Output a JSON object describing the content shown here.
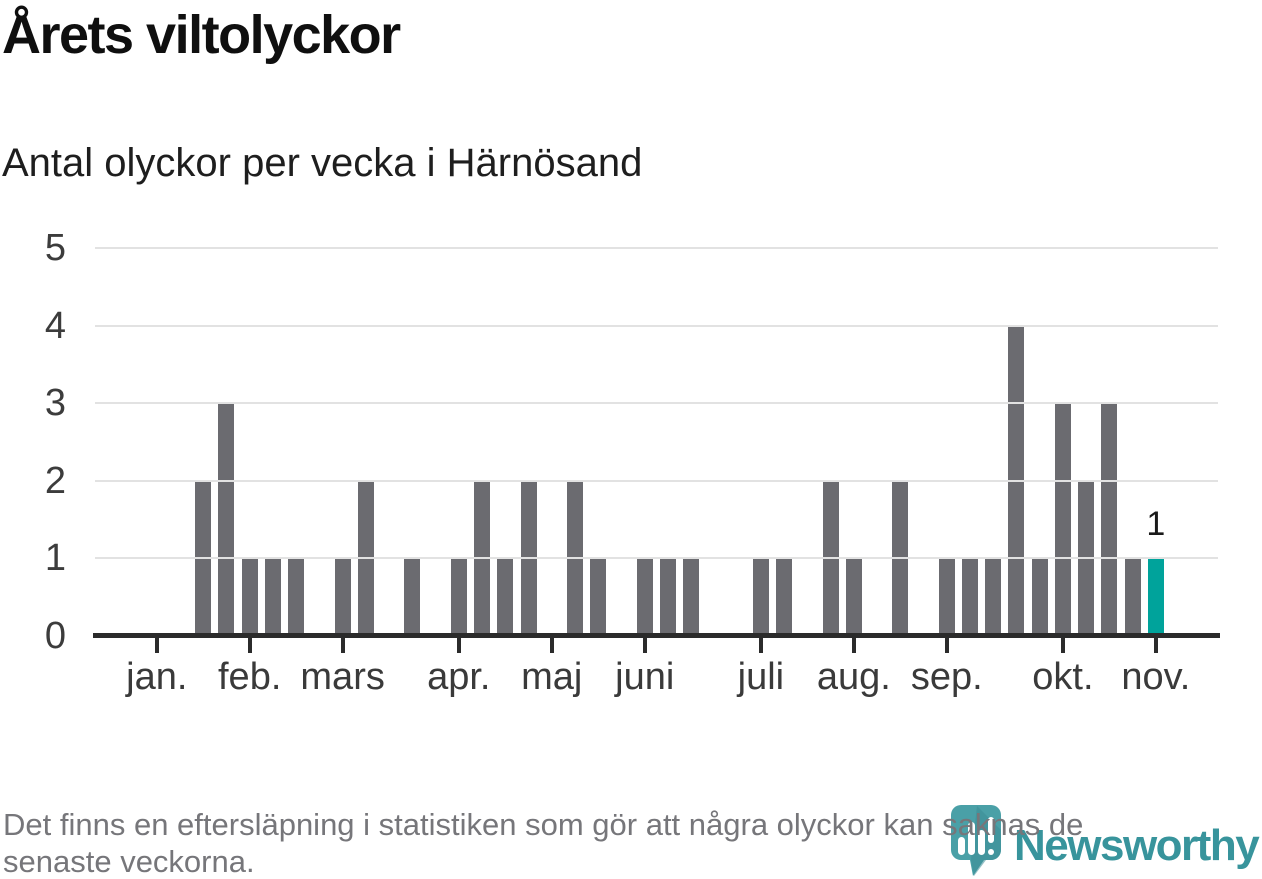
{
  "header": {
    "title": "Årets viltolyckor",
    "subtitle": "Antal olyckor per vecka i Härnösand"
  },
  "chart_data": {
    "type": "bar",
    "title": "Årets viltolyckor",
    "subtitle": "Antal olyckor per vecka i Härnösand",
    "x_unit": "vecka",
    "y_unit": "antal olyckor",
    "values": [
      0,
      0,
      0,
      0,
      2,
      3,
      1,
      1,
      1,
      0,
      1,
      2,
      0,
      1,
      0,
      1,
      2,
      1,
      2,
      0,
      2,
      1,
      0,
      1,
      1,
      1,
      0,
      0,
      1,
      1,
      0,
      2,
      1,
      0,
      2,
      0,
      1,
      1,
      1,
      4,
      1,
      3,
      2,
      3,
      1,
      1
    ],
    "highlight_index": 45,
    "highlight_value_label": "1",
    "y_ticks": [
      0,
      1,
      2,
      3,
      4,
      5
    ],
    "ylim": [
      0,
      5
    ],
    "grid": "on",
    "legend": "none",
    "month_ticks": [
      {
        "label": "jan.",
        "week_index": 2
      },
      {
        "label": "feb.",
        "week_index": 6
      },
      {
        "label": "mars",
        "week_index": 10
      },
      {
        "label": "apr.",
        "week_index": 15
      },
      {
        "label": "maj",
        "week_index": 19
      },
      {
        "label": "juni",
        "week_index": 23
      },
      {
        "label": "juli",
        "week_index": 28
      },
      {
        "label": "aug.",
        "week_index": 32
      },
      {
        "label": "sep.",
        "week_index": 36
      },
      {
        "label": "okt.",
        "week_index": 41
      },
      {
        "label": "nov.",
        "week_index": 45
      }
    ],
    "colors": {
      "bar": "#6b6b70",
      "highlight": "#00a39b",
      "grid": "#e2e2e2",
      "axis": "#2b2b2b"
    }
  },
  "footer": {
    "note_lines": [
      "Det finns en eftersläpning i statistiken som gör att några olyckor kan saknas de",
      "senaste veckorna."
    ]
  },
  "logo": {
    "text": "Newsworthy",
    "icon": "newsworthy-pin-icon",
    "text_color": "#38949c",
    "pin_color": "#4aa0a7",
    "pin_shade_color": "#3d8d95"
  }
}
